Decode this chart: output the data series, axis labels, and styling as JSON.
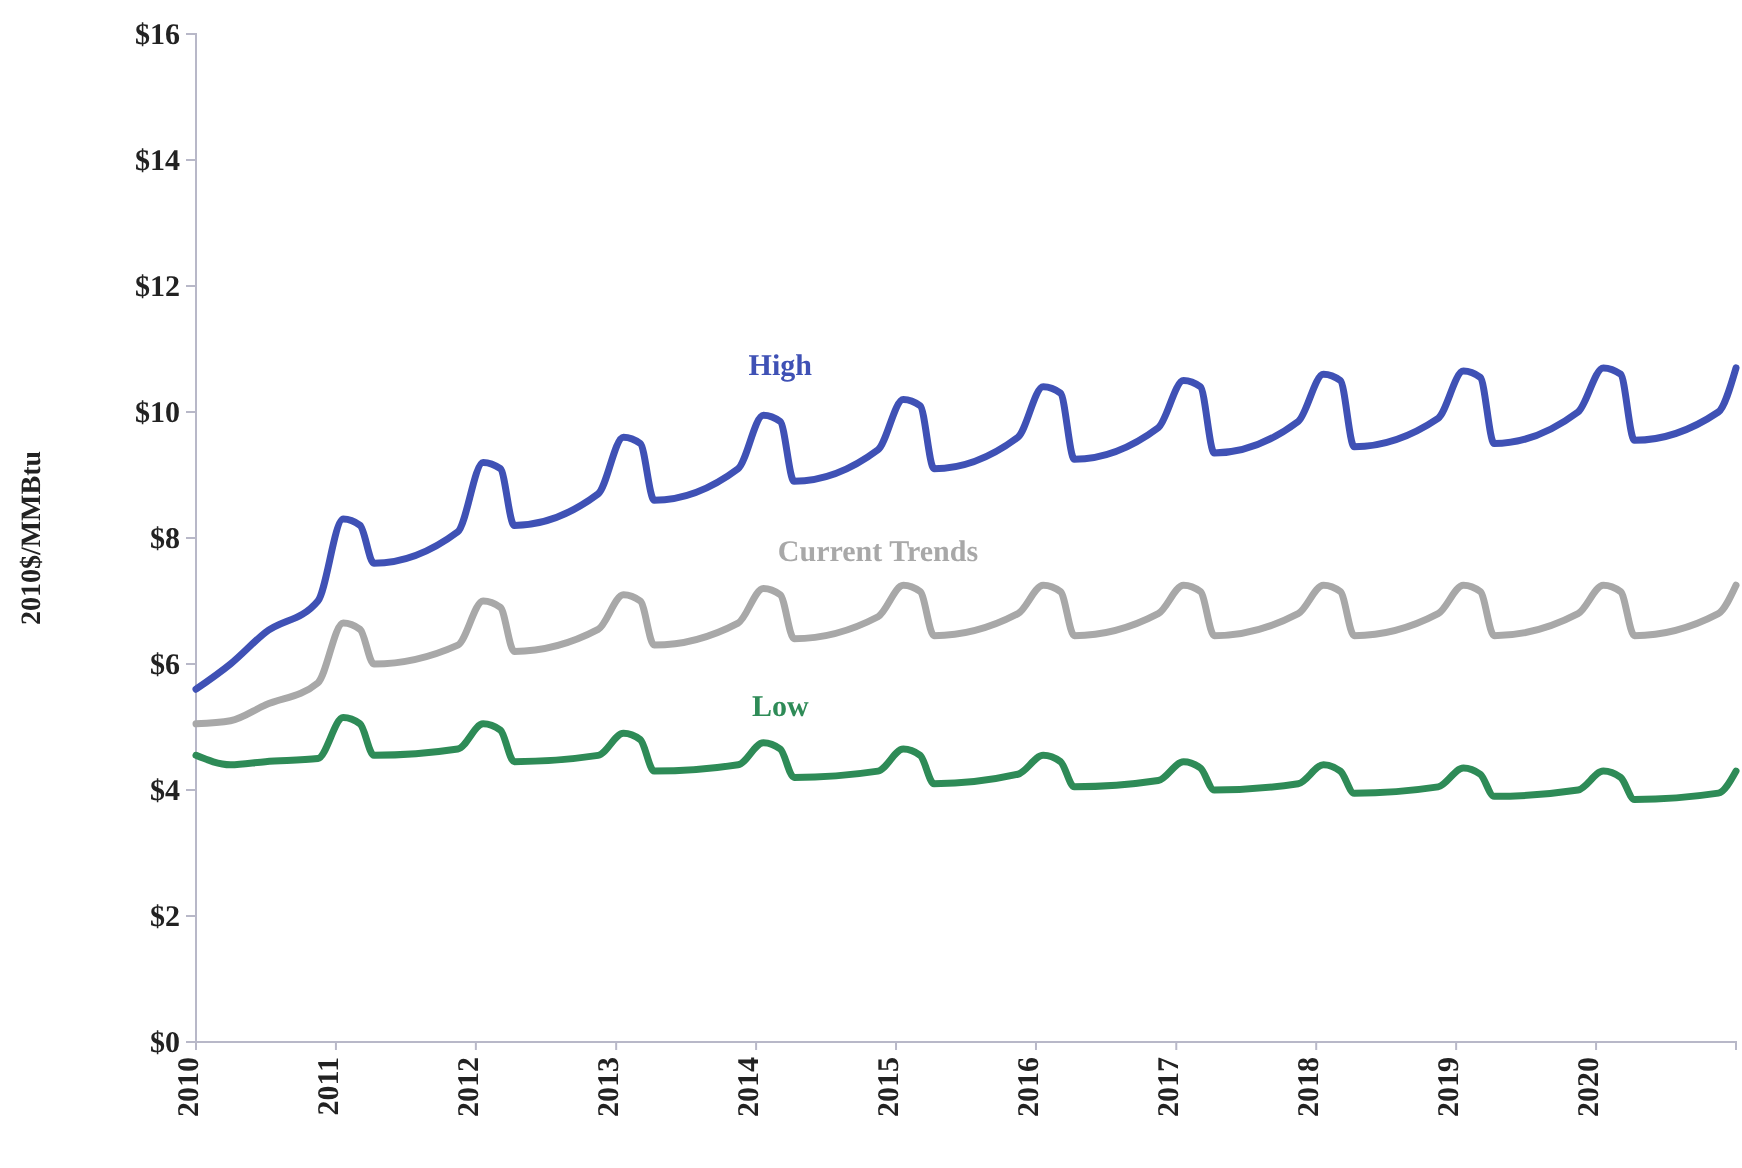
{
  "chart_data": {
    "type": "line",
    "ylabel": "2010$/MMBtu",
    "x": [
      "2010-01-01",
      "2010-04-01",
      "2010-07-01",
      "2010-11-15",
      "2011-01-20",
      "2011-03-05",
      "2011-04-10",
      "2011-11-15",
      "2012-01-20",
      "2012-03-05",
      "2012-04-10",
      "2012-11-15",
      "2013-01-20",
      "2013-03-05",
      "2013-04-10",
      "2013-11-15",
      "2014-01-20",
      "2014-03-05",
      "2014-04-10",
      "2014-11-15",
      "2015-01-20",
      "2015-03-05",
      "2015-04-10",
      "2015-11-15",
      "2016-01-20",
      "2016-03-05",
      "2016-04-10",
      "2016-11-15",
      "2017-01-20",
      "2017-03-05",
      "2017-04-10",
      "2017-11-15",
      "2018-01-20",
      "2018-03-05",
      "2018-04-10",
      "2018-11-15",
      "2019-01-20",
      "2019-03-05",
      "2019-04-10",
      "2019-11-15",
      "2020-01-20",
      "2020-03-05",
      "2020-04-10",
      "2020-11-15",
      "2020-12-31"
    ],
    "series": [
      {
        "name": "High",
        "color": "#3f51b5",
        "values": [
          5.6,
          6.0,
          6.5,
          7.0,
          8.3,
          8.2,
          7.6,
          8.1,
          9.2,
          9.1,
          8.2,
          8.7,
          9.6,
          9.5,
          8.6,
          9.1,
          9.95,
          9.85,
          8.9,
          9.4,
          10.2,
          10.1,
          9.1,
          9.6,
          10.4,
          10.3,
          9.25,
          9.75,
          10.5,
          10.4,
          9.35,
          9.85,
          10.6,
          10.5,
          9.45,
          9.9,
          10.65,
          10.55,
          9.5,
          10.0,
          10.7,
          10.6,
          9.55,
          10.0,
          10.7
        ]
      },
      {
        "name": "Current Trends",
        "color": "#a8a8a8",
        "values": [
          5.05,
          5.1,
          5.35,
          5.7,
          6.65,
          6.55,
          6.0,
          6.3,
          7.0,
          6.9,
          6.2,
          6.55,
          7.1,
          7.0,
          6.3,
          6.65,
          7.2,
          7.1,
          6.4,
          6.75,
          7.25,
          7.15,
          6.45,
          6.8,
          7.25,
          7.15,
          6.45,
          6.8,
          7.25,
          7.15,
          6.45,
          6.8,
          7.25,
          7.15,
          6.45,
          6.8,
          7.25,
          7.15,
          6.45,
          6.8,
          7.25,
          7.15,
          6.45,
          6.8,
          7.25
        ]
      },
      {
        "name": "Low",
        "color": "#2e8b57",
        "values": [
          4.55,
          4.4,
          4.45,
          4.5,
          5.15,
          5.05,
          4.55,
          4.65,
          5.05,
          4.95,
          4.45,
          4.55,
          4.9,
          4.8,
          4.3,
          4.4,
          4.75,
          4.65,
          4.2,
          4.3,
          4.65,
          4.55,
          4.1,
          4.25,
          4.55,
          4.45,
          4.05,
          4.15,
          4.45,
          4.35,
          4.0,
          4.1,
          4.4,
          4.3,
          3.95,
          4.05,
          4.35,
          4.25,
          3.9,
          4.0,
          4.3,
          4.2,
          3.85,
          3.95,
          4.3
        ]
      }
    ],
    "xlim": [
      "2010-01-01",
      "2020-12-31"
    ],
    "xticks": [
      {
        "value": "2010-01-01",
        "label": "2010"
      },
      {
        "value": "2011-01-01",
        "label": "2011"
      },
      {
        "value": "2012-01-01",
        "label": "2012"
      },
      {
        "value": "2013-01-01",
        "label": "2013"
      },
      {
        "value": "2014-01-01",
        "label": "2014"
      },
      {
        "value": "2015-01-01",
        "label": "2015"
      },
      {
        "value": "2016-01-01",
        "label": "2016"
      },
      {
        "value": "2017-01-01",
        "label": "2017"
      },
      {
        "value": "2018-01-01",
        "label": "2018"
      },
      {
        "value": "2019-01-01",
        "label": "2019"
      },
      {
        "value": "2020-01-01",
        "label": "2020"
      }
    ],
    "ylim": [
      0,
      16
    ],
    "yticks": [
      {
        "value": 0,
        "label": "$0"
      },
      {
        "value": 2,
        "label": "$2"
      },
      {
        "value": 4,
        "label": "$4"
      },
      {
        "value": 6,
        "label": "$6"
      },
      {
        "value": 8,
        "label": "$8"
      },
      {
        "value": 10,
        "label": "$10"
      },
      {
        "value": 12,
        "label": "$12"
      },
      {
        "value": 14,
        "label": "$14"
      },
      {
        "value": 16,
        "label": "$16"
      }
    ],
    "grid": false,
    "legend": false,
    "marker": "none",
    "line_style": "solid"
  }
}
